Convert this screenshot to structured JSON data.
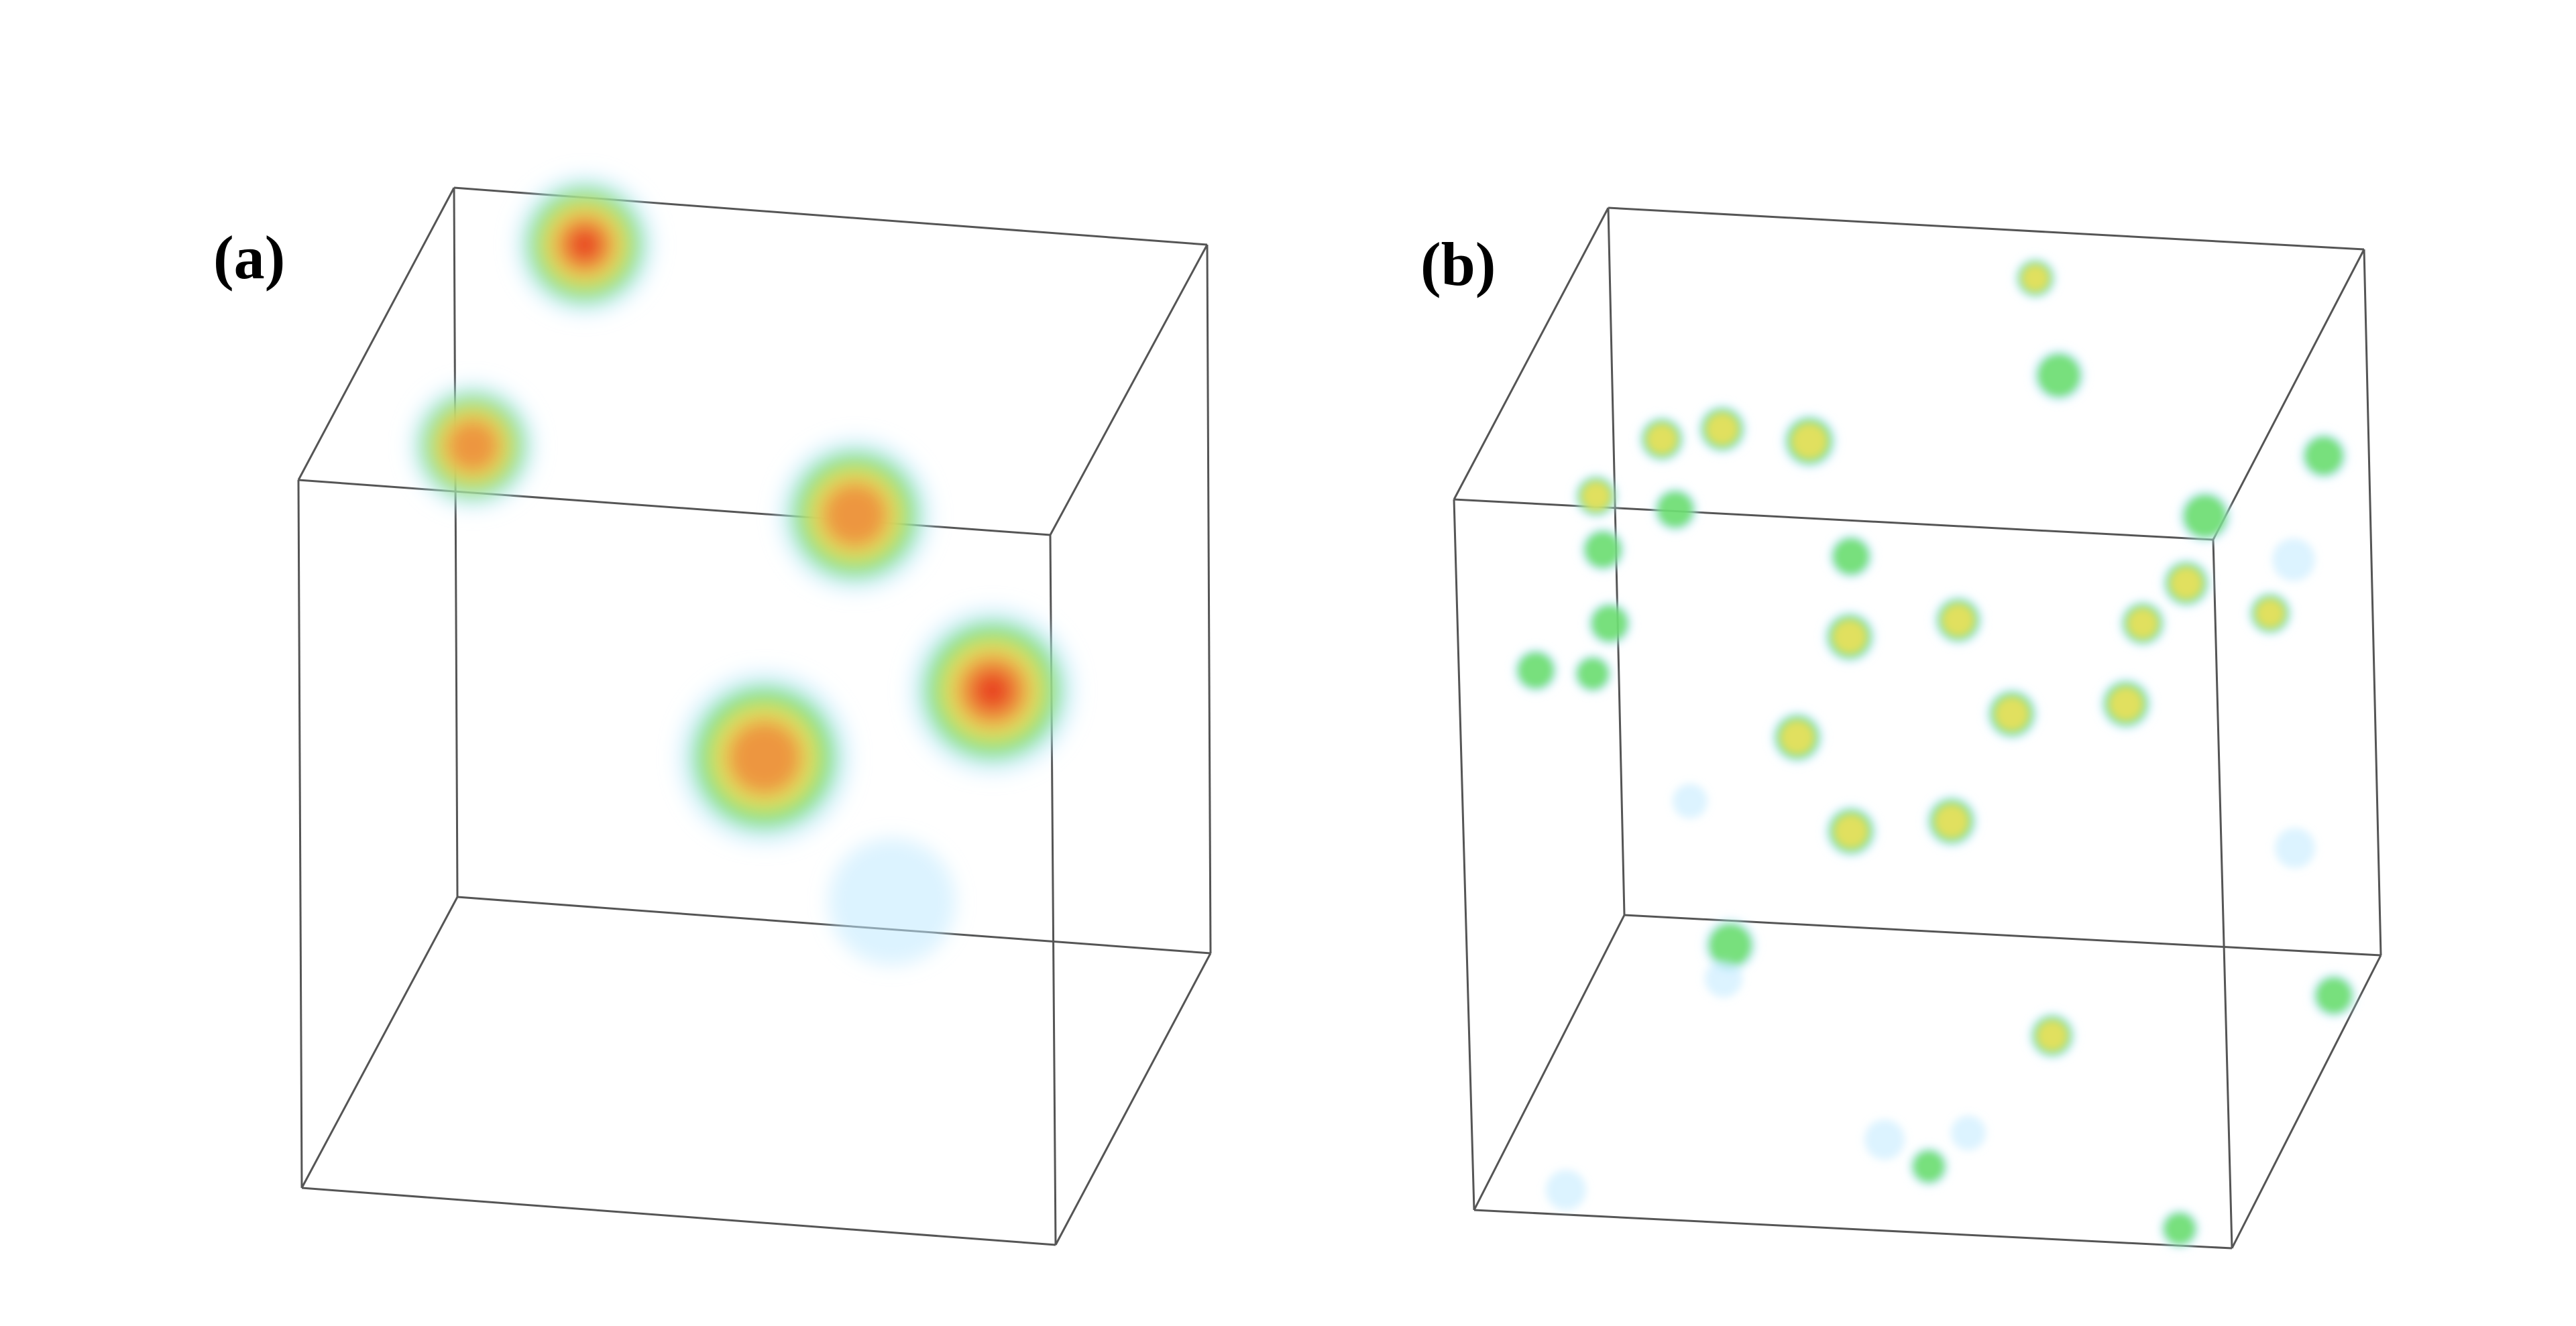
{
  "figure": {
    "panels": [
      {
        "id": "a",
        "label": "(a)",
        "blob_style": "large",
        "blobs": [
          {
            "intensity": 1.0
          },
          {
            "intensity": 0.85
          },
          {
            "intensity": 0.75
          },
          {
            "intensity": 0.8
          },
          {
            "intensity": 1.0
          },
          {
            "intensity": 0.25
          }
        ]
      },
      {
        "id": "b",
        "label": "(b)",
        "blob_style": "small",
        "blobs": [
          {
            "intensity": 0.55
          },
          {
            "intensity": 0.5
          },
          {
            "intensity": 0.6
          },
          {
            "intensity": 0.6
          },
          {
            "intensity": 0.4
          },
          {
            "intensity": 0.45
          },
          {
            "intensity": 0.5
          },
          {
            "intensity": 0.45
          },
          {
            "intensity": 0.35
          },
          {
            "intensity": 0.55
          },
          {
            "intensity": 0.5
          },
          {
            "intensity": 0.55
          },
          {
            "intensity": 0.6
          },
          {
            "intensity": 0.55
          },
          {
            "intensity": 0.6
          },
          {
            "intensity": 0.55
          },
          {
            "intensity": 0.55
          },
          {
            "intensity": 0.6
          },
          {
            "intensity": 0.45
          },
          {
            "intensity": 0.3
          },
          {
            "intensity": 0.35
          },
          {
            "intensity": 0.3
          },
          {
            "intensity": 0.5
          },
          {
            "intensity": 0.45
          },
          {
            "intensity": 0.35
          },
          {
            "intensity": 0.2
          },
          {
            "intensity": 0.25
          },
          {
            "intensity": 0.2
          },
          {
            "intensity": 0.55
          },
          {
            "intensity": 0.4
          },
          {
            "intensity": 0.3
          },
          {
            "intensity": 0.25
          },
          {
            "intensity": 0.25
          },
          {
            "intensity": 0.2
          },
          {
            "intensity": 0.3
          },
          {
            "intensity": 0.2
          }
        ]
      }
    ],
    "colormap": [
      "#bfe9ff",
      "#66dd66",
      "#f5e05a",
      "#f08a3a",
      "#e8361e"
    ],
    "frame_color": "#555555"
  }
}
